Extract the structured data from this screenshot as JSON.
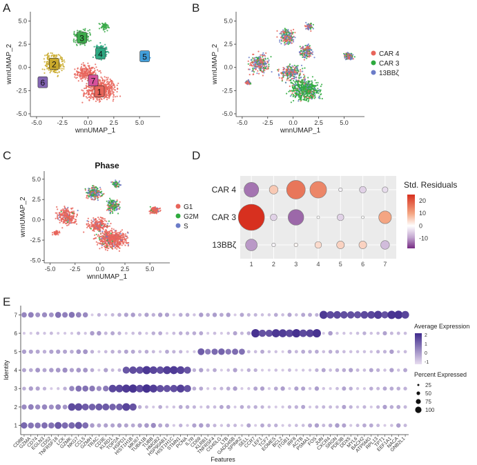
{
  "panels": {
    "a": "A",
    "b": "B",
    "c": "C",
    "d": "D",
    "e": "E"
  },
  "chart_data": [
    {
      "type": "scatter",
      "panel": "A",
      "title": "",
      "xlabel": "wnnUMAP_1",
      "ylabel": "wnnUMAP_2",
      "xlim": [
        -5.5,
        7.0
      ],
      "ylim": [
        -5.2,
        6.0
      ],
      "x_ticks": [
        "-5.0",
        "-2.5",
        "0.0",
        "2.5",
        "5.0"
      ],
      "y_ticks": [
        "-5.0",
        "-2.5",
        "0.0",
        "2.5",
        "5.0"
      ],
      "clusters": [
        {
          "label": "1",
          "color": "#E8645A",
          "center": [
            1.1,
            -2.6
          ]
        },
        {
          "label": "2",
          "color": "#C9A92A",
          "center": [
            -3.3,
            0.4
          ]
        },
        {
          "label": "3",
          "color": "#3BAA4A",
          "center": [
            -0.6,
            3.2
          ]
        },
        {
          "label": "4",
          "color": "#29A67F",
          "center": [
            1.2,
            1.5
          ]
        },
        {
          "label": "5",
          "color": "#3D9BD8",
          "center": [
            5.5,
            1.2
          ]
        },
        {
          "label": "6",
          "color": "#7E5FB0",
          "center": [
            -4.4,
            -1.6
          ]
        },
        {
          "label": "7",
          "color": "#D44D9B",
          "center": [
            0.5,
            -1.4
          ]
        }
      ]
    },
    {
      "type": "scatter",
      "panel": "B",
      "title": "",
      "xlabel": "wnnUMAP_1",
      "ylabel": "wnnUMAP_2",
      "x_ticks": [
        "-5.0",
        "-2.5",
        "0.0",
        "2.5",
        "5.0"
      ],
      "y_ticks": [
        "-5.0",
        "-2.5",
        "0.0",
        "2.5",
        "5.0"
      ],
      "legend": [
        {
          "name": "CAR 4",
          "color": "#E8645A"
        },
        {
          "name": "CAR 3",
          "color": "#2EAA3E"
        },
        {
          "name": "13BBζ",
          "color": "#6B7CC8"
        }
      ],
      "legend_position": "right"
    },
    {
      "type": "scatter",
      "panel": "C",
      "title": "Phase",
      "xlabel": "wnnUMAP_1",
      "ylabel": "wnnUMAP_2",
      "x_ticks": [
        "-5.0",
        "-2.5",
        "0.0",
        "2.5",
        "5.0"
      ],
      "y_ticks": [
        "-5.0",
        "-2.5",
        "0.0",
        "2.5",
        "5.0"
      ],
      "legend": [
        {
          "name": "G1",
          "color": "#E8645A"
        },
        {
          "name": "G2M",
          "color": "#2EAA3E"
        },
        {
          "name": "S",
          "color": "#6B7CC8"
        }
      ],
      "legend_position": "right"
    },
    {
      "type": "bubble",
      "panel": "D",
      "categories": [
        "1",
        "2",
        "3",
        "4",
        "5",
        "6",
        "7"
      ],
      "rows": [
        "CAR 4",
        "CAR 3",
        "13BBζ"
      ],
      "legend_title": "Std. Residuals",
      "colorbar_ticks": [
        "20",
        "10",
        "0",
        "-10"
      ],
      "colorbar_range": [
        -18,
        25
      ],
      "series": [
        {
          "name": "CAR 4",
          "values": [
            -12,
            6,
            16,
            14,
            -1,
            -4,
            -3
          ]
        },
        {
          "name": "CAR 3",
          "values": [
            25,
            -4,
            -13,
            0,
            -4,
            0,
            10
          ]
        },
        {
          "name": "13BBζ",
          "values": [
            -9,
            -1,
            1,
            4,
            5,
            5,
            -6
          ]
        }
      ]
    },
    {
      "type": "dotplot",
      "panel": "E",
      "xlabel": "Features",
      "ylabel": "Identity",
      "identities": [
        "7",
        "6",
        "5",
        "4",
        "3",
        "2",
        "1"
      ],
      "features": [
        "CD8B",
        "GZMA",
        "CD74",
        "EGLN3",
        "CD52",
        "TNFRSF18",
        "LCK",
        "GZMK",
        "NKG7",
        "CCL5",
        "GZMH",
        "TRAC",
        "CD3E",
        "KLRD1",
        "TOP2A",
        "HSPD1",
        "HIST1H1B",
        "MKI67",
        "TUBA1B",
        "TUBB",
        "HMGB2",
        "HSP90AB1",
        "HIST1H1C",
        "STMN1",
        "PCNA",
        "IL7R",
        "CD69",
        "KLRB1",
        "TNFRSF4",
        "CD40LG",
        "LTB",
        "GADD45B",
        "SPINK2",
        "SELL",
        "CCR7",
        "LEF1",
        "TCF7",
        "EOMES",
        "BCL2",
        "ITGB1",
        "IRF8",
        "ACTB",
        "PSMA1",
        "FOS",
        "JUN",
        "CXCR4",
        "SRGN",
        "PDE3B",
        "DDX5",
        "MYL6",
        "BACH2",
        "ATP5MG",
        "RPL13",
        "TPT1",
        "EEF1A1",
        "NACA",
        "GNB2L1"
      ],
      "legend_avg_title": "Average Expression",
      "legend_avg_ticks": [
        "2",
        "1",
        "0",
        "-1"
      ],
      "legend_pct_title": "Percent Expressed",
      "legend_pct_ticks": [
        "25",
        "50",
        "75",
        "100"
      ]
    }
  ]
}
